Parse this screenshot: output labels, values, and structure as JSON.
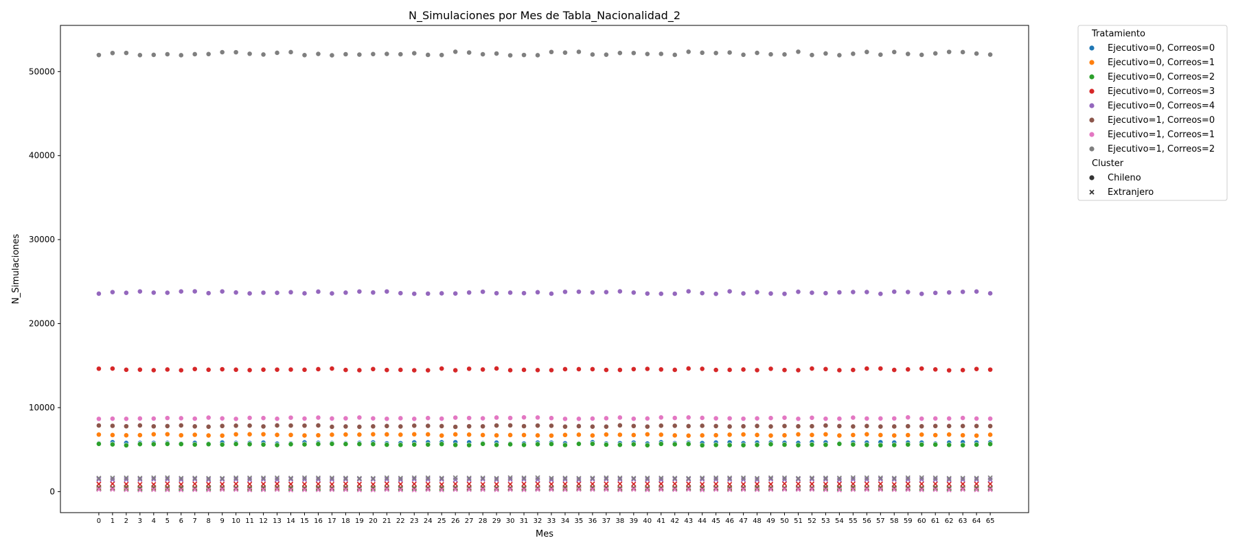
{
  "chart_data": {
    "type": "scatter",
    "title": "N_Simulaciones por Mes de Tabla_Nacionalidad_2",
    "xlabel": "Mes",
    "ylabel": "N_Simulaciones",
    "x": [
      0,
      1,
      2,
      3,
      4,
      5,
      6,
      7,
      8,
      9,
      10,
      11,
      12,
      13,
      14,
      15,
      16,
      17,
      18,
      19,
      20,
      21,
      22,
      23,
      24,
      25,
      26,
      27,
      28,
      29,
      30,
      31,
      32,
      33,
      34,
      35,
      36,
      37,
      38,
      39,
      40,
      41,
      42,
      43,
      44,
      45,
      46,
      47,
      48,
      49,
      50,
      51,
      52,
      53,
      54,
      55,
      56,
      57,
      58,
      59,
      60,
      61,
      62,
      63,
      64,
      65
    ],
    "xlim": [
      -2.8,
      67.8
    ],
    "ylim": [
      -2500,
      55500
    ],
    "yticks": [
      0,
      10000,
      20000,
      30000,
      40000,
      50000
    ],
    "legend": {
      "hue_title": "Tratamiento",
      "style_title": "Cluster",
      "style_entries": [
        {
          "name": "Chileno",
          "marker": "circle"
        },
        {
          "name": "Extranjero",
          "marker": "x"
        }
      ]
    },
    "series": [
      {
        "name": "Ejecutivo=0, Correos=0",
        "color": "#1f77b4",
        "chileno_base": 5800,
        "extranjero_base": 380
      },
      {
        "name": "Ejecutivo=0, Correos=1",
        "color": "#ff7f0e",
        "chileno_base": 6750,
        "extranjero_base": 420
      },
      {
        "name": "Ejecutivo=0, Correos=2",
        "color": "#2ca02c",
        "chileno_base": 5600,
        "extranjero_base": 330
      },
      {
        "name": "Ejecutivo=0, Correos=3",
        "color": "#d62728",
        "chileno_base": 14550,
        "extranjero_base": 900
      },
      {
        "name": "Ejecutivo=0, Correos=4",
        "color": "#9467bd",
        "chileno_base": 23700,
        "extranjero_base": 1450
      },
      {
        "name": "Ejecutivo=1, Correos=0",
        "color": "#8c564b",
        "chileno_base": 7800,
        "extranjero_base": 480
      },
      {
        "name": "Ejecutivo=1, Correos=1",
        "color": "#e377c2",
        "chileno_base": 8750,
        "extranjero_base": 230
      },
      {
        "name": "Ejecutivo=1, Correos=2",
        "color": "#7f7f7f",
        "chileno_base": 52150,
        "extranjero_base": 1620
      }
    ]
  }
}
